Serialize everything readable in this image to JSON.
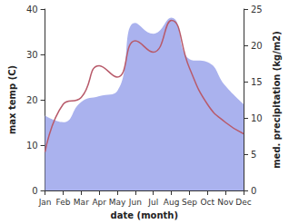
{
  "chart_data": {
    "type": "line",
    "categories": [
      "Jan",
      "Feb",
      "Mar",
      "Apr",
      "May",
      "Jun",
      "Jul",
      "Aug",
      "Sep",
      "Oct",
      "Nov",
      "Dec"
    ],
    "x_label": "date (month)",
    "y_label": "max temp (C)",
    "y2_label": "med. precipitation (kg/m2)",
    "ylim": [
      0,
      40
    ],
    "yticks": [
      0,
      10,
      20,
      30,
      40
    ],
    "y2lim": [
      0,
      25
    ],
    "y2ticks": [
      0,
      5,
      10,
      15,
      20,
      25
    ],
    "grid": false,
    "series": [
      {
        "name": "med. precipitation",
        "type": "area",
        "axis": "y2",
        "color": "#aab2ee",
        "values": [
          10.3,
          9.4,
          12.2,
          13,
          13.7,
          23.1,
          21.6,
          23.8,
          18.1,
          17.7,
          14.4,
          11.9
        ]
      },
      {
        "name": "max temp",
        "type": "line",
        "color": "#b85a6a",
        "values": [
          8.5,
          19,
          20.5,
          27.5,
          25,
          33,
          30.5,
          37.5,
          27,
          19,
          15,
          12.5
        ]
      }
    ]
  }
}
